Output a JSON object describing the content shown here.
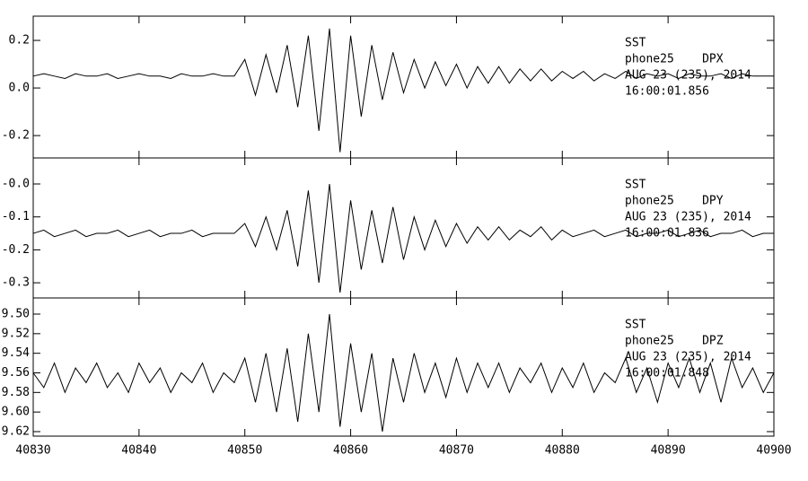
{
  "chart_data": [
    {
      "type": "line",
      "annotation": [
        "SST",
        "phone25    DPX",
        "AUG 23 (235), 2014",
        "16:00:01.856"
      ],
      "x": [
        40830,
        40831,
        40832,
        40833,
        40834,
        40835,
        40836,
        40837,
        40838,
        40839,
        40840,
        40841,
        40842,
        40843,
        40844,
        40845,
        40846,
        40847,
        40848,
        40849,
        40850,
        40851,
        40852,
        40853,
        40854,
        40855,
        40856,
        40857,
        40858,
        40859,
        40860,
        40861,
        40862,
        40863,
        40864,
        40865,
        40866,
        40867,
        40868,
        40869,
        40870,
        40871,
        40872,
        40873,
        40874,
        40875,
        40876,
        40877,
        40878,
        40879,
        40880,
        40881,
        40882,
        40883,
        40884,
        40885,
        40886,
        40887,
        40888,
        40889,
        40890,
        40891,
        40892,
        40893,
        40894,
        40895,
        40896,
        40897,
        40898,
        40899,
        40900
      ],
      "values": [
        0.05,
        0.06,
        0.05,
        0.04,
        0.06,
        0.05,
        0.05,
        0.06,
        0.04,
        0.05,
        0.06,
        0.05,
        0.05,
        0.04,
        0.06,
        0.05,
        0.05,
        0.06,
        0.05,
        0.05,
        0.12,
        -0.03,
        0.14,
        -0.02,
        0.18,
        -0.08,
        0.22,
        -0.18,
        0.25,
        -0.27,
        0.22,
        -0.12,
        0.18,
        -0.05,
        0.15,
        -0.02,
        0.12,
        0.0,
        0.11,
        0.01,
        0.1,
        0.0,
        0.09,
        0.02,
        0.09,
        0.02,
        0.08,
        0.03,
        0.08,
        0.03,
        0.07,
        0.04,
        0.07,
        0.03,
        0.06,
        0.04,
        0.07,
        0.04,
        0.06,
        0.05,
        0.06,
        0.04,
        0.06,
        0.05,
        0.05,
        0.06,
        0.04,
        0.06,
        0.05,
        0.05,
        0.05
      ],
      "color": "#000000",
      "xlim": [
        40830,
        40900
      ],
      "xticks": [
        40830,
        40840,
        40850,
        40860,
        40870,
        40880,
        40890,
        40900
      ],
      "ylim": [
        -0.294,
        0.302
      ],
      "yticks": [
        0.2,
        {
          "value": 0,
          "label": "0.0"
        },
        -0.2
      ]
    },
    {
      "type": "line",
      "annotation": [
        "SST",
        "phone25    DPY",
        "AUG 23 (235), 2014",
        "16:00:01.836"
      ],
      "x": [
        40830,
        40831,
        40832,
        40833,
        40834,
        40835,
        40836,
        40837,
        40838,
        40839,
        40840,
        40841,
        40842,
        40843,
        40844,
        40845,
        40846,
        40847,
        40848,
        40849,
        40850,
        40851,
        40852,
        40853,
        40854,
        40855,
        40856,
        40857,
        40858,
        40859,
        40860,
        40861,
        40862,
        40863,
        40864,
        40865,
        40866,
        40867,
        40868,
        40869,
        40870,
        40871,
        40872,
        40873,
        40874,
        40875,
        40876,
        40877,
        40878,
        40879,
        40880,
        40881,
        40882,
        40883,
        40884,
        40885,
        40886,
        40887,
        40888,
        40889,
        40890,
        40891,
        40892,
        40893,
        40894,
        40895,
        40896,
        40897,
        40898,
        40899,
        40900
      ],
      "values": [
        -0.15,
        -0.14,
        -0.16,
        -0.15,
        -0.14,
        -0.16,
        -0.15,
        -0.15,
        -0.14,
        -0.16,
        -0.15,
        -0.14,
        -0.16,
        -0.15,
        -0.15,
        -0.14,
        -0.16,
        -0.15,
        -0.15,
        -0.15,
        -0.12,
        -0.19,
        -0.1,
        -0.2,
        -0.08,
        -0.25,
        -0.02,
        -0.3,
        0.0,
        -0.33,
        -0.05,
        -0.26,
        -0.08,
        -0.24,
        -0.07,
        -0.23,
        -0.1,
        -0.2,
        -0.11,
        -0.19,
        -0.12,
        -0.18,
        -0.13,
        -0.17,
        -0.13,
        -0.17,
        -0.14,
        -0.16,
        -0.13,
        -0.17,
        -0.14,
        -0.16,
        -0.15,
        -0.14,
        -0.16,
        -0.15,
        -0.14,
        -0.16,
        -0.15,
        -0.15,
        -0.14,
        -0.16,
        -0.15,
        -0.14,
        -0.16,
        -0.15,
        -0.15,
        -0.14,
        -0.16,
        -0.15,
        -0.15
      ],
      "color": "#000000",
      "xlim": [
        40830,
        40900
      ],
      "xticks": [
        40830,
        40840,
        40850,
        40860,
        40870,
        40880,
        40890,
        40900
      ],
      "ylim": [
        -0.346,
        0.079
      ],
      "yticks": [
        {
          "value": 0,
          "label": "-0.0"
        },
        -0.1,
        -0.2,
        -0.3
      ]
    },
    {
      "type": "line",
      "annotation": [
        "SST",
        "phone25    DPZ",
        "AUG 23 (235), 2014",
        "16:00:01.848"
      ],
      "x": [
        40830,
        40831,
        40832,
        40833,
        40834,
        40835,
        40836,
        40837,
        40838,
        40839,
        40840,
        40841,
        40842,
        40843,
        40844,
        40845,
        40846,
        40847,
        40848,
        40849,
        40850,
        40851,
        40852,
        40853,
        40854,
        40855,
        40856,
        40857,
        40858,
        40859,
        40860,
        40861,
        40862,
        40863,
        40864,
        40865,
        40866,
        40867,
        40868,
        40869,
        40870,
        40871,
        40872,
        40873,
        40874,
        40875,
        40876,
        40877,
        40878,
        40879,
        40880,
        40881,
        40882,
        40883,
        40884,
        40885,
        40886,
        40887,
        40888,
        40889,
        40890,
        40891,
        40892,
        40893,
        40894,
        40895,
        40896,
        40897,
        40898,
        40899,
        40900
      ],
      "values": [
        -9.56,
        -9.575,
        -9.55,
        -9.58,
        -9.555,
        -9.57,
        -9.55,
        -9.575,
        -9.56,
        -9.58,
        -9.55,
        -9.57,
        -9.555,
        -9.58,
        -9.56,
        -9.57,
        -9.55,
        -9.58,
        -9.56,
        -9.57,
        -9.545,
        -9.59,
        -9.54,
        -9.6,
        -9.535,
        -9.61,
        -9.52,
        -9.6,
        -9.5,
        -9.615,
        -9.53,
        -9.6,
        -9.54,
        -9.62,
        -9.545,
        -9.59,
        -9.54,
        -9.58,
        -9.55,
        -9.585,
        -9.545,
        -9.58,
        -9.55,
        -9.575,
        -9.55,
        -9.58,
        -9.555,
        -9.57,
        -9.55,
        -9.58,
        -9.555,
        -9.575,
        -9.55,
        -9.58,
        -9.56,
        -9.57,
        -9.545,
        -9.58,
        -9.555,
        -9.59,
        -9.55,
        -9.575,
        -9.545,
        -9.58,
        -9.55,
        -9.59,
        -9.545,
        -9.575,
        -9.555,
        -9.58,
        -9.56
      ],
      "color": "#000000",
      "xlim": [
        40830,
        40900
      ],
      "xticks": [
        40830,
        40840,
        40850,
        40860,
        40870,
        40880,
        40890,
        40900
      ],
      "ylim": [
        -9.6246,
        -9.4835
      ],
      "yticks": [
        {
          "value": -9.5,
          "label": "-9.50"
        },
        -9.52,
        -9.54,
        -9.56,
        -9.58,
        {
          "value": -9.6,
          "label": "-9.60"
        },
        -9.62
      ]
    }
  ]
}
